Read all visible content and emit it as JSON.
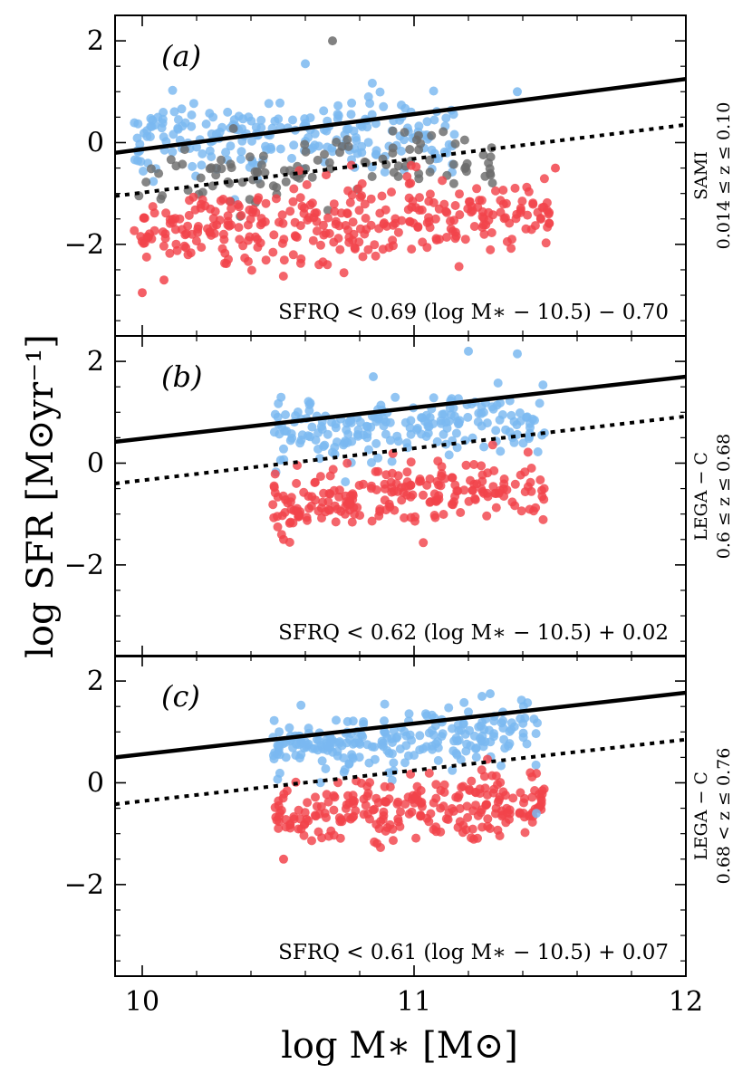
{
  "chart_data": {
    "type": "scatter",
    "xlabel": "log M∗ [M⊙]",
    "ylabel": "log SFR [M⊙yr⁻¹]",
    "xlim": [
      9.9,
      12.0
    ],
    "ylim": [
      -3.8,
      2.5
    ],
    "xticks": [
      10,
      11,
      12
    ],
    "xtick_labels": [
      "10",
      "11",
      "12"
    ],
    "yticks": [
      2,
      0,
      -2
    ],
    "ytick_labels": [
      "2",
      "0",
      "−2"
    ],
    "colors": {
      "star_forming": "#7ab8f0",
      "quiescent": "#f2434b",
      "intermediate": "#6b6b6b",
      "line": "#000000"
    },
    "panels": [
      {
        "label": "(a)",
        "side_label_line1": "SAMI",
        "side_label_line2": "0.014 ≤ z ≤ 0.10",
        "annotation": "SFRQ < 0.69 (log M∗ − 10.5) − 0.70",
        "main_sequence_line": {
          "x": [
            9.9,
            12.0
          ],
          "y": [
            -0.2,
            1.25
          ]
        },
        "quiescent_line": {
          "x": [
            9.9,
            12.0
          ],
          "y": [
            -1.05,
            0.35
          ]
        },
        "clouds": [
          {
            "group": "star_forming",
            "count": 230,
            "x_range": [
              9.97,
              11.15
            ],
            "y_center": 0.15,
            "y_slope": 0.2,
            "y_spread": 0.38
          },
          {
            "group": "intermediate",
            "count": 110,
            "x_range": [
              9.97,
              11.3
            ],
            "y_center": -0.55,
            "y_slope": 0.4,
            "y_spread": 0.35
          },
          {
            "group": "quiescent",
            "count": 330,
            "x_range": [
              9.97,
              11.5
            ],
            "y_center": -1.55,
            "y_slope": 0.2,
            "y_spread": 0.4
          }
        ],
        "extra_points": [
          {
            "group": "intermediate",
            "x": 10.7,
            "y": 2.0
          },
          {
            "group": "star_forming",
            "x": 11.38,
            "y": 1.0
          },
          {
            "group": "star_forming",
            "x": 10.6,
            "y": 1.55
          },
          {
            "group": "quiescent",
            "x": 10.0,
            "y": -2.95
          },
          {
            "group": "quiescent",
            "x": 10.08,
            "y": -2.7
          },
          {
            "group": "quiescent",
            "x": 11.52,
            "y": -0.5
          }
        ]
      },
      {
        "label": "(b)",
        "side_label_line1": "LEGA − C",
        "side_label_line2": "0.6 ≤ z ≤ 0.68",
        "annotation": "SFRQ < 0.62 (log M∗ − 10.5) + 0.02",
        "main_sequence_line": {
          "x": [
            9.9,
            12.0
          ],
          "y": [
            0.42,
            1.7
          ]
        },
        "quiescent_line": {
          "x": [
            9.9,
            12.0
          ],
          "y": [
            -0.4,
            0.92
          ]
        },
        "clouds": [
          {
            "group": "star_forming",
            "count": 200,
            "x_range": [
              10.48,
              11.48
            ],
            "y_center": 0.7,
            "y_slope": 0.35,
            "y_spread": 0.3
          },
          {
            "group": "quiescent",
            "count": 220,
            "x_range": [
              10.48,
              11.48
            ],
            "y_center": -0.6,
            "y_slope": 0.35,
            "y_spread": 0.3
          }
        ],
        "extra_points": [
          {
            "group": "star_forming",
            "x": 11.2,
            "y": 2.2
          },
          {
            "group": "star_forming",
            "x": 11.38,
            "y": 2.15
          },
          {
            "group": "star_forming",
            "x": 10.85,
            "y": 1.7
          },
          {
            "group": "quiescent",
            "x": 10.52,
            "y": -1.5
          }
        ]
      },
      {
        "label": "(c)",
        "side_label_line1": "LEGA − C",
        "side_label_line2": "0.68 < z ≤ 0.76",
        "annotation": "SFRQ < 0.61 (log M∗ − 10.5) + 0.07",
        "main_sequence_line": {
          "x": [
            9.9,
            12.0
          ],
          "y": [
            0.5,
            1.77
          ]
        },
        "quiescent_line": {
          "x": [
            9.9,
            12.0
          ],
          "y": [
            -0.42,
            0.85
          ]
        },
        "clouds": [
          {
            "group": "star_forming",
            "count": 230,
            "x_range": [
              10.48,
              11.46
            ],
            "y_center": 0.85,
            "y_slope": 0.3,
            "y_spread": 0.28
          },
          {
            "group": "quiescent",
            "count": 250,
            "x_range": [
              10.48,
              11.48
            ],
            "y_center": -0.5,
            "y_slope": 0.3,
            "y_spread": 0.3
          }
        ],
        "extra_points": [
          {
            "group": "star_forming",
            "x": 11.28,
            "y": 1.75
          },
          {
            "group": "star_forming",
            "x": 11.25,
            "y": 1.7
          },
          {
            "group": "quiescent",
            "x": 10.52,
            "y": -1.5
          },
          {
            "group": "star_forming",
            "x": 11.45,
            "y": -0.6
          }
        ]
      }
    ]
  }
}
